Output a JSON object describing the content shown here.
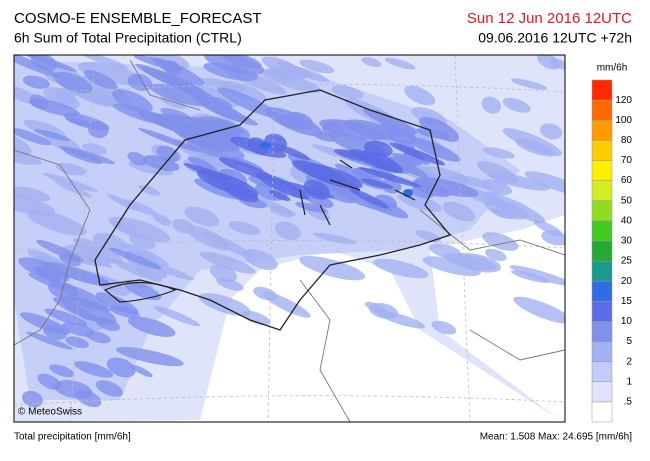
{
  "header": {
    "title": "COSMO-E ENSEMBLE_FORECAST",
    "subtitle": "6h Sum of Total Precipitation (CTRL)",
    "valid_time": "Sun 12 Jun 2016 12UTC",
    "run_time": "09.06.2016 12UTC +72h"
  },
  "map": {
    "credit": "© MeteoSwiss"
  },
  "legend": {
    "unit": "mm/6h",
    "colors": [
      "#ffffff",
      "#dfe4fb",
      "#c3ccf6",
      "#a3b0f1",
      "#8191eb",
      "#5c6ce4",
      "#2f6ce6",
      "#1a9a8e",
      "#22aa33",
      "#44c822",
      "#8fdc22",
      "#d4ee22",
      "#ffee00",
      "#ffcc00",
      "#ff9a00",
      "#ff6a00",
      "#ff2a00"
    ],
    "labels": [
      ".5",
      "1",
      "2",
      "5",
      "10",
      "15",
      "20",
      "25",
      "30",
      "40",
      "50",
      "60",
      "70",
      "80",
      "100",
      "120"
    ]
  },
  "footer": {
    "left": "Total precipitation [mm/6h]",
    "right": "Mean:  1.508 Max: 24.695 [mm/6h]"
  }
}
